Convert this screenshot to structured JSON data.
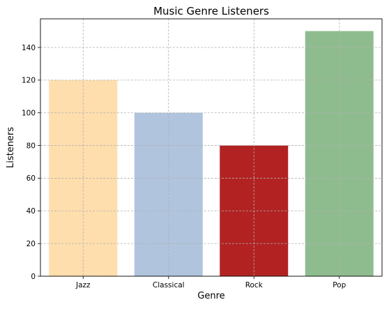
{
  "chart_data": {
    "type": "bar",
    "title": "Music Genre Listeners",
    "xlabel": "Genre",
    "ylabel": "Listeners",
    "categories": [
      "Jazz",
      "Classical",
      "Rock",
      "Pop"
    ],
    "values": [
      120,
      100,
      80,
      150
    ],
    "colors": [
      "#ffdead",
      "#b0c4de",
      "#b22222",
      "#8fbc8f"
    ],
    "ylim": [
      0,
      157.5
    ],
    "yticks": [
      0,
      20,
      40,
      60,
      80,
      100,
      120,
      140
    ],
    "grid": true,
    "grid_color": "#b0b0b0"
  }
}
